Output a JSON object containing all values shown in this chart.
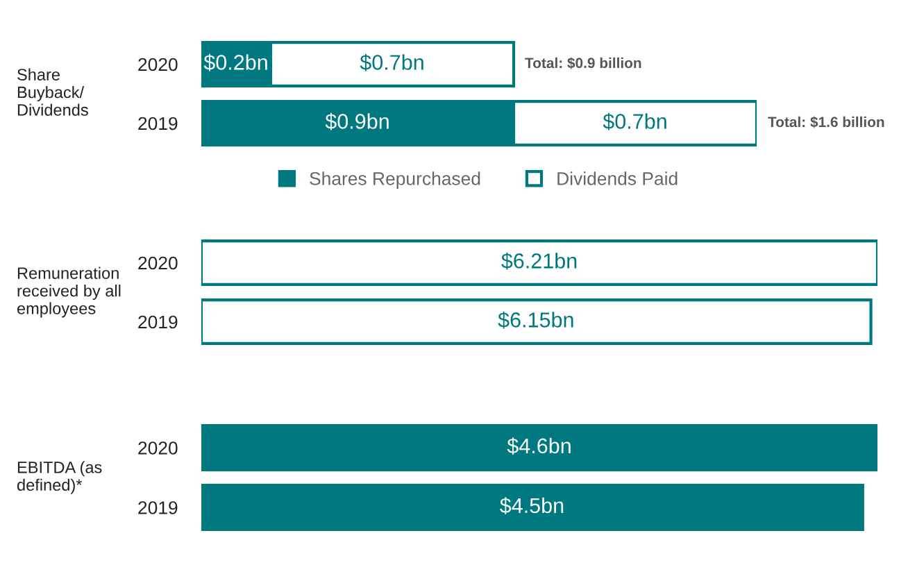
{
  "chart_data": [
    {
      "type": "bar",
      "orientation": "horizontal",
      "stacked": true,
      "ylabel": "Share\nBuyback/\nDividends",
      "categories": [
        "2020",
        "2019"
      ],
      "xlim": [
        0,
        1.6
      ],
      "tick_labels": "y",
      "legend": "bottom",
      "series": [
        {
          "name": "Shares Repurchased",
          "color": "#00787f",
          "values": [
            0.2,
            0.9
          ],
          "value_labels": [
            "$0.2bn",
            "$0.9bn"
          ]
        },
        {
          "name": "Dividends Paid",
          "color": "#ffffff",
          "values": [
            0.7,
            0.7
          ],
          "value_labels": [
            "$0.7bn",
            "$0.7bn"
          ]
        }
      ],
      "totals": [
        "Total: $0.9 billion",
        "Total: $1.6 billion"
      ]
    },
    {
      "type": "bar",
      "orientation": "horizontal",
      "ylabel": "Remuneration\nreceived by all\nemployees",
      "categories": [
        "2020",
        "2019"
      ],
      "xlim": [
        0,
        6.21
      ],
      "tick_labels": "y",
      "series": [
        {
          "color": "#ffffff",
          "values": [
            6.21,
            6.15
          ],
          "value_labels": [
            "$6.21bn",
            "$6.15bn"
          ]
        }
      ]
    },
    {
      "type": "bar",
      "orientation": "horizontal",
      "ylabel": "EBITDA (as\ndefined)*",
      "categories": [
        "2020",
        "2019"
      ],
      "xlim": [
        0,
        4.6
      ],
      "tick_labels": "y",
      "series": [
        {
          "color": "#00787f",
          "values": [
            4.6,
            4.5
          ],
          "value_labels": [
            "$4.6bn",
            "$4.5bn"
          ]
        }
      ]
    }
  ]
}
